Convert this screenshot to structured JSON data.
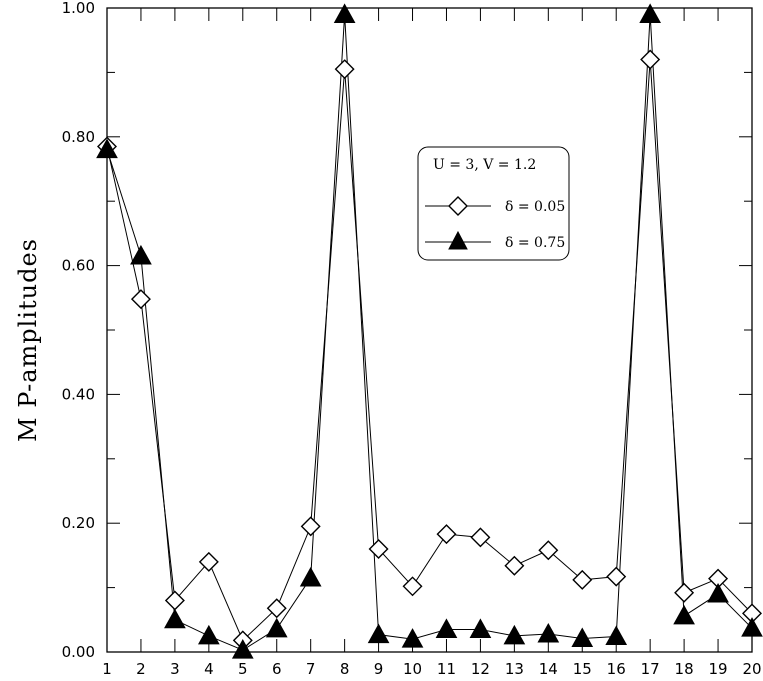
{
  "chart_data": {
    "type": "line",
    "title": "",
    "xlabel": "",
    "ylabel": "M P-amplitudes",
    "x": [
      1,
      2,
      3,
      4,
      5,
      6,
      7,
      8,
      9,
      10,
      11,
      12,
      13,
      14,
      15,
      16,
      17,
      18,
      19,
      20
    ],
    "xlim": [
      1,
      20
    ],
    "ylim": [
      0,
      1
    ],
    "x_tick_labels": [
      "1",
      "2",
      "3",
      "4",
      "5",
      "6",
      "7",
      "8",
      "9",
      "10",
      "11",
      "12",
      "13",
      "14",
      "15",
      "16",
      "17",
      "18",
      "19",
      "20"
    ],
    "y_tick_labels": [
      "0.00",
      "0.20",
      "0.40",
      "0.60",
      "0.80",
      "1.00"
    ],
    "y_ticks": [
      0,
      0.2,
      0.4,
      0.6,
      0.8,
      1.0
    ],
    "grid": false,
    "legend_placement": "upper-right",
    "legend_title": "U = 3,  V = 1.2",
    "series": [
      {
        "name": "δ = 0.05",
        "marker": "diamond-open",
        "values": [
          0.785,
          0.548,
          0.08,
          0.14,
          0.018,
          0.068,
          0.195,
          0.905,
          0.16,
          0.102,
          0.183,
          0.178,
          0.134,
          0.158,
          0.112,
          0.117,
          0.92,
          0.092,
          0.114,
          0.06
        ]
      },
      {
        "name": "δ = 0.75",
        "marker": "triangle-filled",
        "values": [
          0.78,
          0.615,
          0.05,
          0.025,
          0.003,
          0.036,
          0.115,
          0.99,
          0.027,
          0.02,
          0.035,
          0.035,
          0.025,
          0.028,
          0.021,
          0.024,
          0.99,
          0.056,
          0.09,
          0.037
        ]
      }
    ]
  }
}
